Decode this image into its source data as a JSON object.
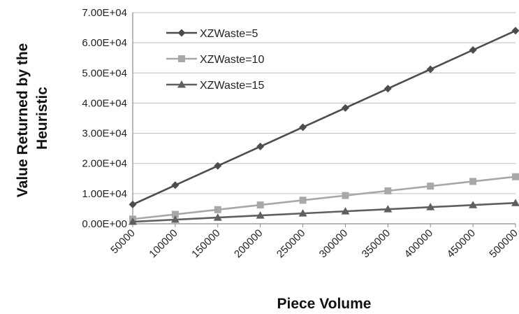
{
  "chart_data": {
    "type": "line",
    "title": "",
    "xlabel": "Piece Volume",
    "ylabel_lines": [
      "Value Returned by the",
      "Heuristic"
    ],
    "x": [
      50000,
      100000,
      150000,
      200000,
      250000,
      300000,
      350000,
      400000,
      450000,
      500000
    ],
    "x_tick_labels": [
      "50000",
      "100000",
      "150000",
      "200000",
      "250000",
      "300000",
      "350000",
      "400000",
      "450000",
      "500000"
    ],
    "ylim": [
      0,
      70000
    ],
    "y_ticks": [
      0,
      10000,
      20000,
      30000,
      40000,
      50000,
      60000,
      70000
    ],
    "y_tick_labels": [
      "0.00E+00",
      "1.00E+04",
      "2.00E+04",
      "3.00E+04",
      "4.00E+04",
      "5.00E+04",
      "6.00E+04",
      "7.00E+04"
    ],
    "grid": "horizontal",
    "legend_position": "top-left",
    "series": [
      {
        "name": "XZWaste=5",
        "marker": "diamond",
        "color": "#4d4d4d",
        "values": [
          6400,
          12800,
          19200,
          25600,
          32000,
          38400,
          44800,
          51200,
          57600,
          64000
        ]
      },
      {
        "name": "XZWaste=10",
        "marker": "square",
        "color": "#a8a8a8",
        "values": [
          1560,
          3120,
          4680,
          6240,
          7800,
          9360,
          10920,
          12480,
          14040,
          15600
        ]
      },
      {
        "name": "XZWaste=15",
        "marker": "triangle",
        "color": "#5f5f5f",
        "values": [
          690,
          1380,
          2070,
          2760,
          3450,
          4140,
          4830,
          5520,
          6210,
          6900
        ]
      }
    ]
  }
}
